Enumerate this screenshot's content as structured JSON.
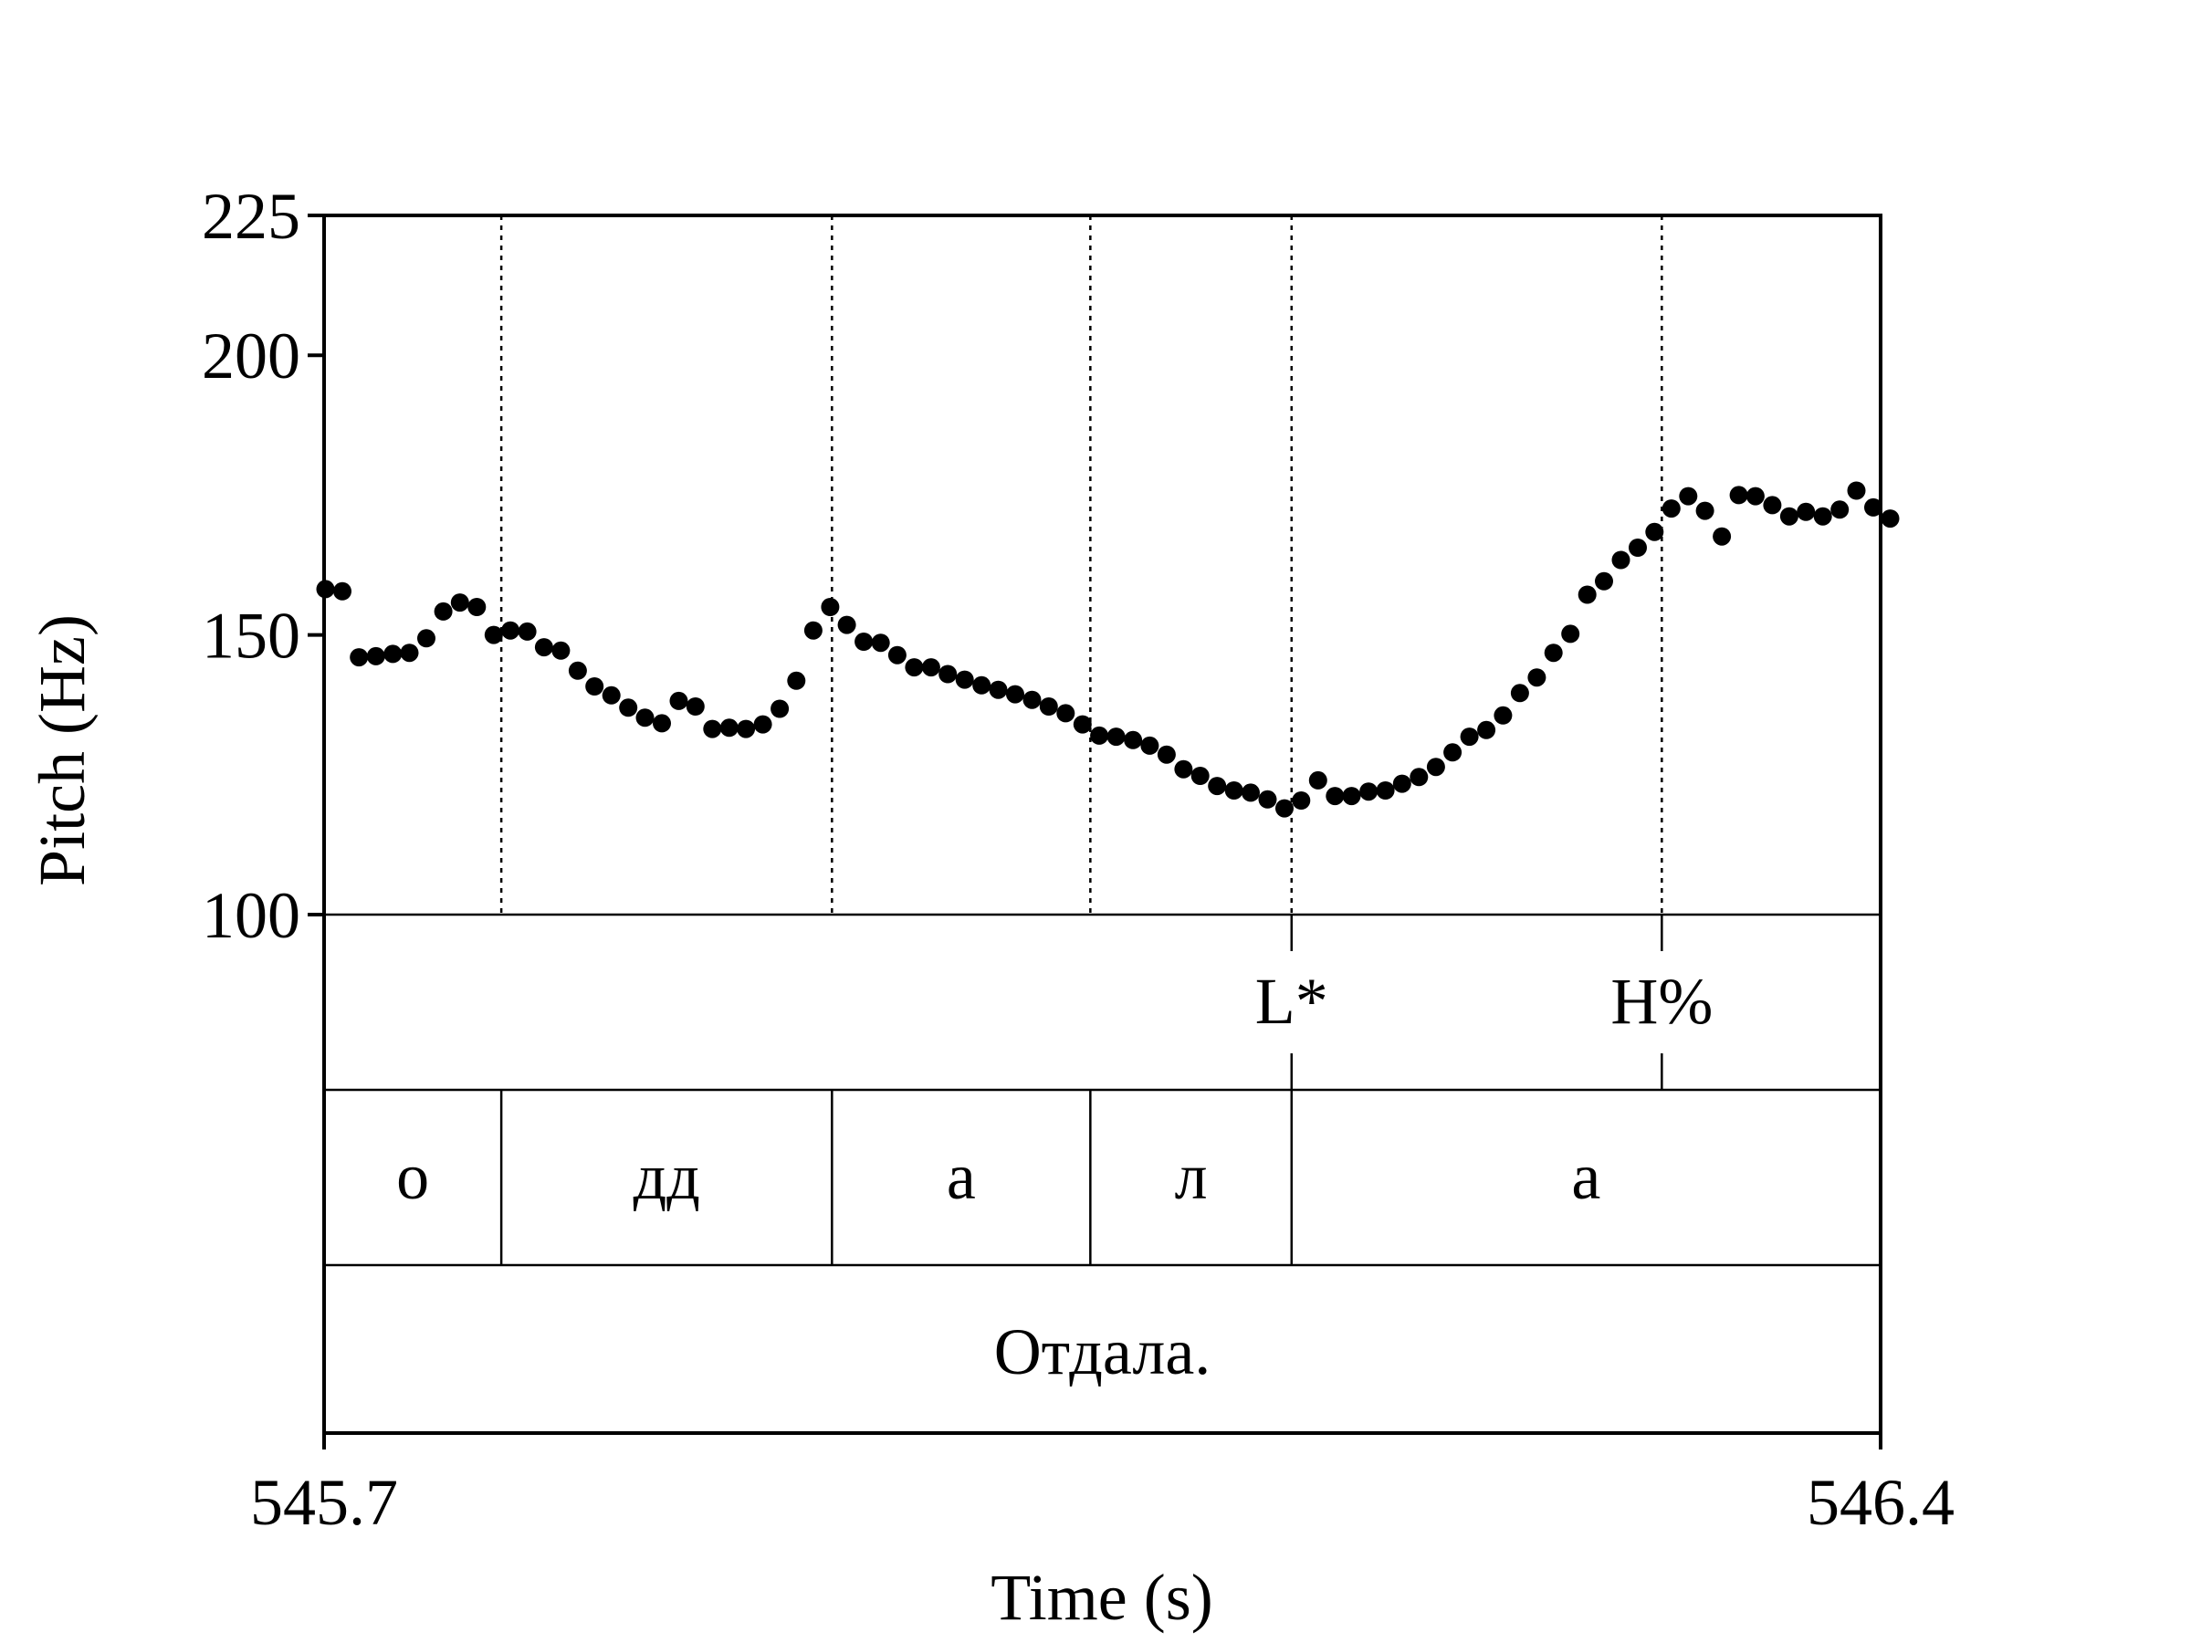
{
  "chart_data": {
    "type": "scatter",
    "title": "",
    "xlabel": "Time (s)",
    "ylabel": "Pitch (Hz)",
    "xlim": [
      545.7,
      546.4
    ],
    "ylim": [
      100,
      225
    ],
    "x_tick_labels": [
      "545.7",
      "546.4"
    ],
    "x_ticks": [
      545.7,
      546.4
    ],
    "y_tick_labels": [
      "100",
      "150",
      "200",
      "225"
    ],
    "y_ticks": [
      100,
      150,
      200,
      225
    ],
    "grid": false,
    "series": [
      {
        "points": [
          [
            545.7006,
            158.2
          ],
          [
            545.7082,
            157.8
          ],
          [
            545.7157,
            146.0
          ],
          [
            545.7233,
            146.2
          ],
          [
            545.7309,
            146.6
          ],
          [
            545.7384,
            146.8
          ],
          [
            545.746,
            149.4
          ],
          [
            545.7536,
            154.2
          ],
          [
            545.7611,
            155.8
          ],
          [
            545.7687,
            155.0
          ],
          [
            545.7763,
            150.0
          ],
          [
            545.7838,
            150.8
          ],
          [
            545.7914,
            150.6
          ],
          [
            545.7989,
            147.8
          ],
          [
            545.8065,
            147.2
          ],
          [
            545.8141,
            143.6
          ],
          [
            545.8216,
            140.8
          ],
          [
            545.8292,
            139.2
          ],
          [
            545.8368,
            137.0
          ],
          [
            545.8443,
            135.2
          ],
          [
            545.8519,
            134.2
          ],
          [
            545.8595,
            138.2
          ],
          [
            545.867,
            137.2
          ],
          [
            545.8746,
            133.2
          ],
          [
            545.8822,
            133.4
          ],
          [
            545.8897,
            133.2
          ],
          [
            545.8973,
            134.0
          ],
          [
            545.9049,
            136.8
          ],
          [
            545.9124,
            141.8
          ],
          [
            545.92,
            150.8
          ],
          [
            545.9276,
            155.0
          ],
          [
            545.9351,
            151.8
          ],
          [
            545.9427,
            148.8
          ],
          [
            545.9503,
            148.6
          ],
          [
            545.9578,
            146.4
          ],
          [
            545.9654,
            144.2
          ],
          [
            545.973,
            144.2
          ],
          [
            545.9805,
            143.0
          ],
          [
            545.9881,
            142.0
          ],
          [
            545.9957,
            141.0
          ],
          [
            546.0032,
            140.2
          ],
          [
            546.0108,
            139.4
          ],
          [
            546.0184,
            138.4
          ],
          [
            546.0259,
            137.2
          ],
          [
            546.0335,
            136.0
          ],
          [
            546.0411,
            134.0
          ],
          [
            546.0486,
            132.0
          ],
          [
            546.0562,
            131.8
          ],
          [
            546.0638,
            131.2
          ],
          [
            546.0713,
            130.2
          ],
          [
            546.0789,
            128.6
          ],
          [
            546.0865,
            126.0
          ],
          [
            546.094,
            124.8
          ],
          [
            546.1016,
            123.0
          ],
          [
            546.1092,
            122.2
          ],
          [
            546.1167,
            121.8
          ],
          [
            546.1243,
            120.6
          ],
          [
            546.1319,
            119.0
          ],
          [
            546.1394,
            120.4
          ],
          [
            546.147,
            124.0
          ],
          [
            546.1546,
            121.2
          ],
          [
            546.1621,
            121.2
          ],
          [
            546.1697,
            122.0
          ],
          [
            546.1773,
            122.2
          ],
          [
            546.1848,
            123.4
          ],
          [
            546.1924,
            124.6
          ],
          [
            546.2,
            126.4
          ],
          [
            546.2075,
            129.0
          ],
          [
            546.2151,
            131.8
          ],
          [
            546.2227,
            133.0
          ],
          [
            546.2302,
            135.6
          ],
          [
            546.2378,
            139.6
          ],
          [
            546.2454,
            142.4
          ],
          [
            546.2529,
            146.8
          ],
          [
            546.2605,
            150.2
          ],
          [
            546.2681,
            157.2
          ],
          [
            546.2756,
            159.6
          ],
          [
            546.2832,
            163.4
          ],
          [
            546.2908,
            165.6
          ],
          [
            546.2983,
            168.4
          ],
          [
            546.3059,
            172.6
          ],
          [
            546.3135,
            174.8
          ],
          [
            546.321,
            172.2
          ],
          [
            546.3286,
            167.6
          ],
          [
            546.3362,
            175.0
          ],
          [
            546.3437,
            174.8
          ],
          [
            546.3513,
            173.2
          ],
          [
            546.3589,
            171.2
          ],
          [
            546.3664,
            172.0
          ],
          [
            546.374,
            171.2
          ],
          [
            546.3816,
            172.4
          ],
          [
            546.3891,
            175.8
          ],
          [
            546.3967,
            172.8
          ],
          [
            546.4043,
            170.8
          ]
        ]
      }
    ],
    "tiers": [
      {
        "name": "tones",
        "points": [
          {
            "time": 546.1351,
            "label": "L*"
          },
          {
            "time": 546.3016,
            "label": "H%"
          }
        ]
      },
      {
        "name": "segments",
        "intervals": [
          {
            "start": 545.7,
            "end": 545.7797,
            "label": "о"
          },
          {
            "start": 545.7797,
            "end": 545.9284,
            "label": "дд"
          },
          {
            "start": 545.9284,
            "end": 546.0446,
            "label": "а"
          },
          {
            "start": 546.0446,
            "end": 546.1351,
            "label": "л"
          },
          {
            "start": 546.1351,
            "end": 546.4,
            "label": "а"
          }
        ]
      },
      {
        "name": "word",
        "intervals": [
          {
            "start": 545.7,
            "end": 546.4,
            "label": "Отдала."
          }
        ]
      }
    ]
  }
}
